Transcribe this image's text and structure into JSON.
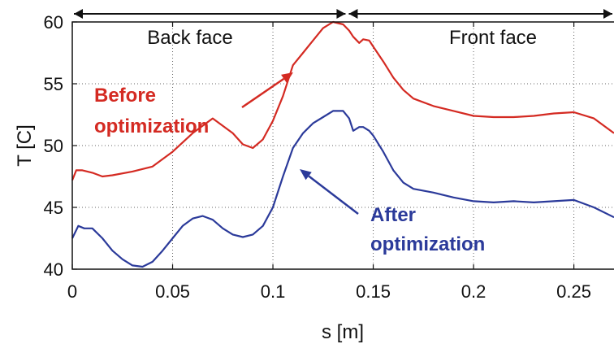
{
  "chart_data": {
    "type": "line",
    "title": "",
    "xlabel": "s [m]",
    "ylabel": "T [C]",
    "xlim": [
      0,
      0.27
    ],
    "ylim": [
      40,
      60
    ],
    "xticks": [
      0,
      0.05,
      0.1,
      0.15,
      0.2,
      0.25
    ],
    "xtick_labels": [
      "0",
      "0.05",
      "0.1",
      "0.15",
      "0.2",
      "0.25"
    ],
    "yticks": [
      40,
      45,
      50,
      55,
      60
    ],
    "ytick_labels": [
      "40",
      "45",
      "50",
      "55",
      "60"
    ],
    "grid": true,
    "legend": "none",
    "regions": [
      {
        "label": "Back face",
        "x_start": 0,
        "x_end": 0.137
      },
      {
        "label": "Front face",
        "x_start": 0.137,
        "x_end": 0.27
      }
    ],
    "series": [
      {
        "color": "#d42a22",
        "x": [
          0,
          0.002,
          0.005,
          0.01,
          0.015,
          0.02,
          0.03,
          0.04,
          0.05,
          0.06,
          0.07,
          0.08,
          0.085,
          0.09,
          0.095,
          0.1,
          0.105,
          0.11,
          0.115,
          0.12,
          0.125,
          0.13,
          0.135,
          0.138,
          0.14,
          0.143,
          0.145,
          0.148,
          0.15,
          0.155,
          0.16,
          0.165,
          0.17,
          0.18,
          0.19,
          0.2,
          0.21,
          0.22,
          0.23,
          0.24,
          0.25,
          0.26,
          0.27
        ],
        "y": [
          47.2,
          48.0,
          48.0,
          47.8,
          47.5,
          47.6,
          47.9,
          48.3,
          49.5,
          51.0,
          52.2,
          51.0,
          50.1,
          49.8,
          50.5,
          52.0,
          54.0,
          56.5,
          57.5,
          58.5,
          59.5,
          60.0,
          59.8,
          59.3,
          58.8,
          58.3,
          58.6,
          58.5,
          58.0,
          56.8,
          55.5,
          54.5,
          53.8,
          53.2,
          52.8,
          52.4,
          52.3,
          52.3,
          52.4,
          52.6,
          52.7,
          52.2,
          51.0
        ]
      },
      {
        "color": "#2b3a9a",
        "x": [
          0,
          0.003,
          0.006,
          0.01,
          0.015,
          0.02,
          0.025,
          0.03,
          0.035,
          0.04,
          0.045,
          0.05,
          0.055,
          0.06,
          0.065,
          0.07,
          0.075,
          0.08,
          0.085,
          0.09,
          0.095,
          0.1,
          0.105,
          0.11,
          0.115,
          0.12,
          0.125,
          0.13,
          0.135,
          0.138,
          0.14,
          0.143,
          0.145,
          0.148,
          0.15,
          0.155,
          0.16,
          0.165,
          0.17,
          0.18,
          0.19,
          0.2,
          0.21,
          0.22,
          0.23,
          0.24,
          0.25,
          0.26,
          0.27
        ],
        "y": [
          42.5,
          43.5,
          43.3,
          43.3,
          42.5,
          41.5,
          40.8,
          40.3,
          40.2,
          40.6,
          41.5,
          42.5,
          43.5,
          44.1,
          44.3,
          44.0,
          43.3,
          42.8,
          42.6,
          42.8,
          43.5,
          45.0,
          47.5,
          49.8,
          51.0,
          51.8,
          52.3,
          52.8,
          52.8,
          52.2,
          51.2,
          51.5,
          51.5,
          51.2,
          50.8,
          49.5,
          48.0,
          47.0,
          46.5,
          46.2,
          45.8,
          45.5,
          45.4,
          45.5,
          45.4,
          45.5,
          45.6,
          45.0,
          44.2
        ]
      }
    ],
    "annotations": [
      {
        "lines": [
          "Before",
          "optimization"
        ],
        "color": "#d42a22"
      },
      {
        "lines": [
          "After",
          "optimization"
        ],
        "color": "#2b3a9a"
      }
    ]
  }
}
